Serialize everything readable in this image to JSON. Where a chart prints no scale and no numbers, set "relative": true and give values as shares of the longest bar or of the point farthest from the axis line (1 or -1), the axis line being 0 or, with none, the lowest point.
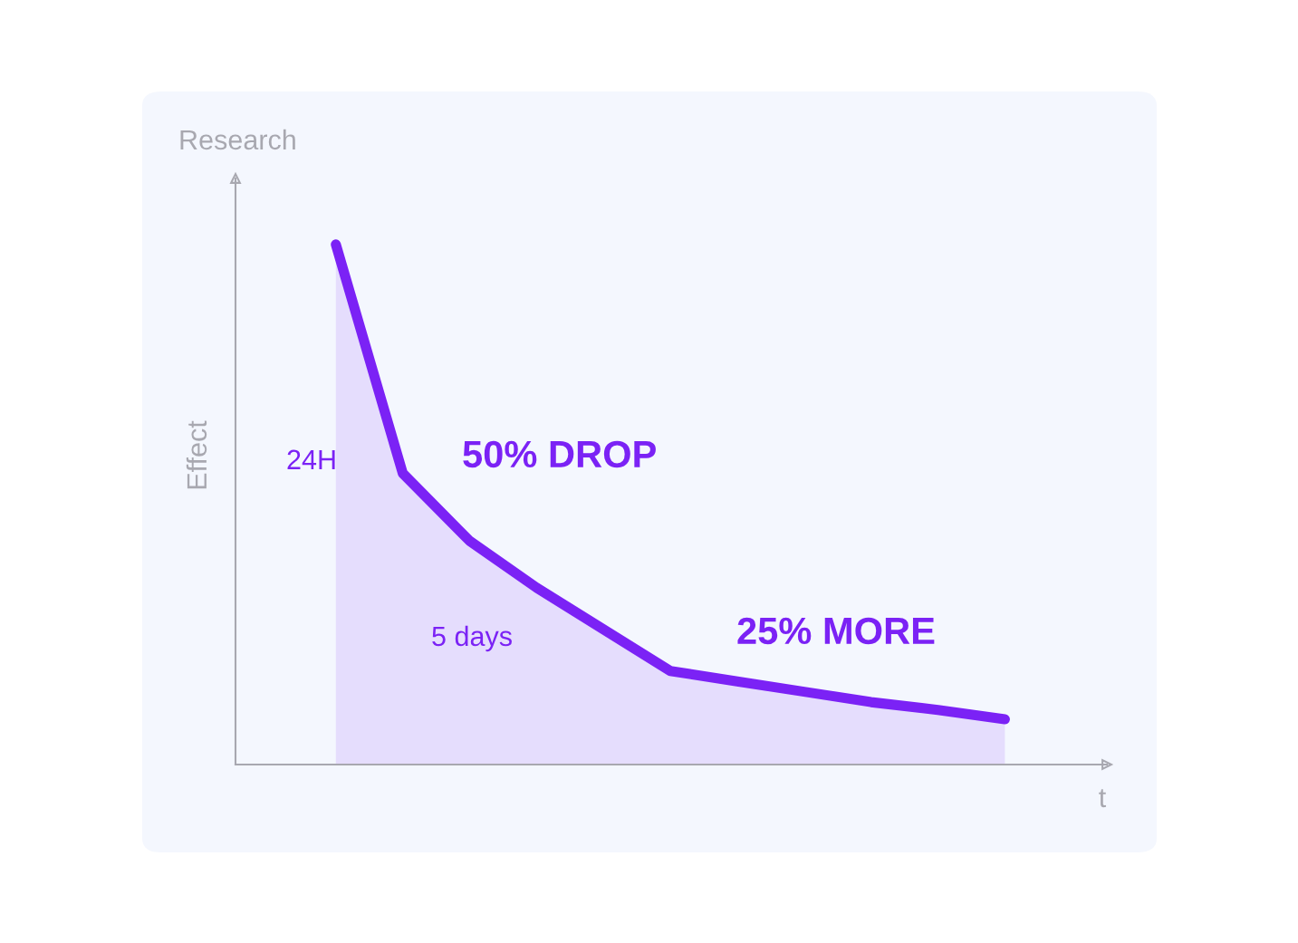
{
  "chart_data": {
    "type": "area",
    "title": "Research",
    "xlabel": "t",
    "ylabel": "Effect",
    "relative": true,
    "categories": [
      null,
      null,
      null,
      null,
      null,
      null,
      null,
      null,
      null,
      null,
      null
    ],
    "series": [
      {
        "color": "#7b22f5",
        "values": [
          1.0,
          0.56,
          0.43,
          0.34,
          0.26,
          0.18,
          0.16,
          0.14,
          0.12,
          0.105,
          0.087
        ]
      }
    ],
    "annotations": [
      "24H",
      "50% DROP",
      "5 days",
      "25% MORE"
    ],
    "grid": false,
    "legend": false
  }
}
